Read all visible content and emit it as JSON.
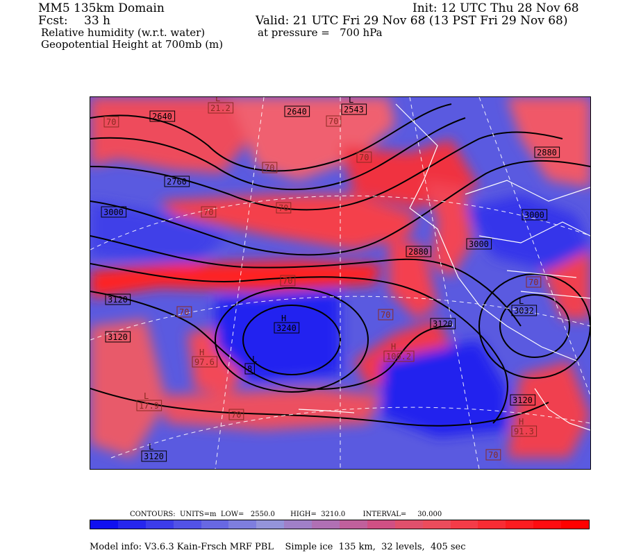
{
  "header": {
    "domain": "MM5 135km Domain",
    "fcst_label": "Fcst:",
    "fcst_value": "33 h",
    "init": "Init: 12 UTC Thu 28 Nov 68",
    "valid": "Valid: 21 UTC Fri 29 Nov 68 (13 PST Fri 29 Nov 68)",
    "field1": "Relative humidity (w.r.t. water)",
    "pressure": "at pressure =   700 hPa",
    "field2": "Geopotential Height at 700mb (m)"
  },
  "map_labels": {
    "contours": [
      {
        "text": "2640"
      },
      {
        "text": "2640"
      },
      {
        "text": "2760"
      },
      {
        "text": "3000"
      },
      {
        "text": "3120"
      },
      {
        "text": "2880"
      },
      {
        "text": "3000"
      },
      {
        "text": "3000"
      },
      {
        "text": "3120"
      },
      {
        "text": "3120"
      },
      {
        "text": "3120"
      },
      {
        "text": "2880"
      }
    ],
    "rh": [
      {
        "text": "70"
      },
      {
        "text": "70"
      },
      {
        "text": "70"
      },
      {
        "text": "70"
      },
      {
        "text": "70"
      },
      {
        "text": "70"
      },
      {
        "text": "70"
      },
      {
        "text": "70"
      },
      {
        "text": "70"
      },
      {
        "text": "70"
      },
      {
        "text": "70"
      },
      {
        "text": "70"
      }
    ],
    "highs_lows": [
      {
        "letter": "L",
        "value": "21.2"
      },
      {
        "letter": "L",
        "value": "2543"
      },
      {
        "letter": "H",
        "value": "3240"
      },
      {
        "letter": "H",
        "value": "97.6"
      },
      {
        "letter": "L",
        "value": "17.9"
      },
      {
        "letter": "L",
        "value": "3120"
      },
      {
        "letter": "H",
        "value": "100.2"
      },
      {
        "letter": "H",
        "value": "91.3"
      },
      {
        "letter": "L",
        "value": "8"
      },
      {
        "letter": "L",
        "value": "3032"
      }
    ]
  },
  "legend": {
    "contours": "CONTOURS:  UNITS=m  LOW=   2550.0       HIGH=  3210.0        INTERVAL=     30.000",
    "colors": [
      "#1010f0",
      "#2626ee",
      "#3c3cea",
      "#5252e6",
      "#6868e2",
      "#7e7ede",
      "#9494da",
      "#a080c8",
      "#b070b4",
      "#c0609c",
      "#d05084",
      "#e0506c",
      "#ec4c5c",
      "#f43c48",
      "#f82c34",
      "#fc1c20",
      "#ff0c10",
      "#ff0000"
    ]
  },
  "model_info": "Model info: V3.6.3 Kain-Frsch MRF PBL    Simple ice  135 km,  32 levels,  405 sec"
}
